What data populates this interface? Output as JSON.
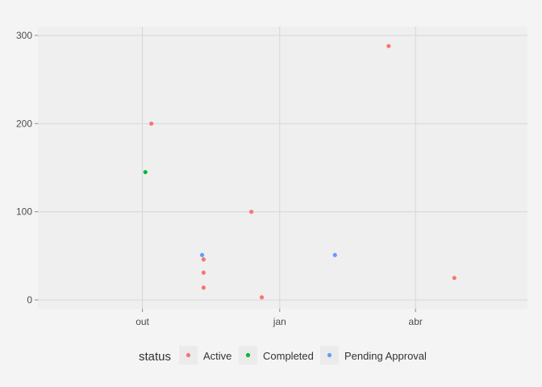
{
  "chart_data": {
    "type": "scatter",
    "title": "",
    "xlabel": "",
    "ylabel": "",
    "x_type": "date",
    "x_ticks": [
      {
        "value": "2023-10-01",
        "label": "out"
      },
      {
        "value": "2024-01-01",
        "label": "jan"
      },
      {
        "value": "2024-04-01",
        "label": "abr"
      }
    ],
    "xlim": [
      "2023-07-23",
      "2024-06-15"
    ],
    "y_ticks": [
      0,
      100,
      200,
      300
    ],
    "ylim": [
      -10,
      310
    ],
    "grid": true,
    "legend": {
      "title": "status",
      "position": "bottom"
    },
    "series": [
      {
        "name": "Active",
        "color": "#F8766D",
        "points": [
          {
            "x": "2023-10-07",
            "y": 200
          },
          {
            "x": "2023-11-11",
            "y": 46
          },
          {
            "x": "2023-11-11",
            "y": 31
          },
          {
            "x": "2023-11-11",
            "y": 14
          },
          {
            "x": "2023-12-13",
            "y": 100
          },
          {
            "x": "2023-12-20",
            "y": 3
          },
          {
            "x": "2024-03-14",
            "y": 288
          },
          {
            "x": "2024-04-27",
            "y": 25
          }
        ]
      },
      {
        "name": "Completed",
        "color": "#00BA38",
        "points": [
          {
            "x": "2023-10-03",
            "y": 145
          }
        ]
      },
      {
        "name": "Pending Approval",
        "color": "#619CFF",
        "points": [
          {
            "x": "2023-11-10",
            "y": 51
          },
          {
            "x": "2024-02-07",
            "y": 51
          }
        ]
      }
    ]
  }
}
